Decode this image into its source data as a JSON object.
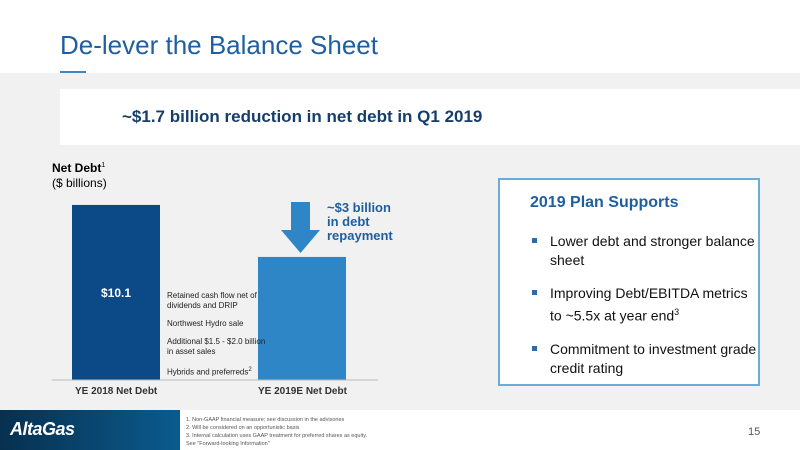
{
  "slide": {
    "title": "De-lever the Balance Sheet",
    "banner": "~$1.7 billion reduction in net debt in Q1 2019",
    "page_number": "15"
  },
  "chart_data": {
    "type": "bar",
    "title": "Net Debt",
    "title_superscript": "1",
    "ylabel": "($ billions)",
    "categories": [
      "YE 2018 Net Debt",
      "YE 2019E Net Debt"
    ],
    "values": [
      10.1,
      7.1
    ],
    "data_labels": [
      "$10.1",
      ""
    ],
    "ylim": [
      0,
      10.5
    ],
    "colors": [
      "#0b4a86",
      "#2f86c6"
    ],
    "annotation": {
      "lines": [
        "~$3 billion",
        "in debt",
        "repayment"
      ],
      "arrow": "down"
    },
    "components": [
      {
        "text": "Retained cash flow net of dividends and DRIP",
        "sup": ""
      },
      {
        "text": "Northwest Hydro sale",
        "sup": ""
      },
      {
        "text": "Additional $1.5 - $2.0 billion in asset sales",
        "sup": ""
      },
      {
        "text": "Hybrids and preferreds",
        "sup": "2"
      }
    ]
  },
  "plan": {
    "title": "2019 Plan Supports",
    "items": [
      {
        "text": "Lower debt and stronger balance sheet",
        "sup": ""
      },
      {
        "text": "Improving Debt/EBITDA metrics to ~5.5x at year end",
        "sup": "3"
      },
      {
        "text": "Commitment to investment grade credit rating",
        "sup": ""
      }
    ]
  },
  "footer": {
    "logo": "AltaGas",
    "footnotes": [
      "1. Non-GAAP financial measure; see discussion in the advisories",
      "2. Will be considered on an opportunistic basis",
      "3. Internal calculation uses GAAP treatment for preferred shares as equity.",
      "See \"Forward-looking Information\""
    ]
  },
  "colors": {
    "title_blue": "#1f5fa0",
    "banner_text": "#163e6b",
    "box_border": "#6aaed8"
  }
}
